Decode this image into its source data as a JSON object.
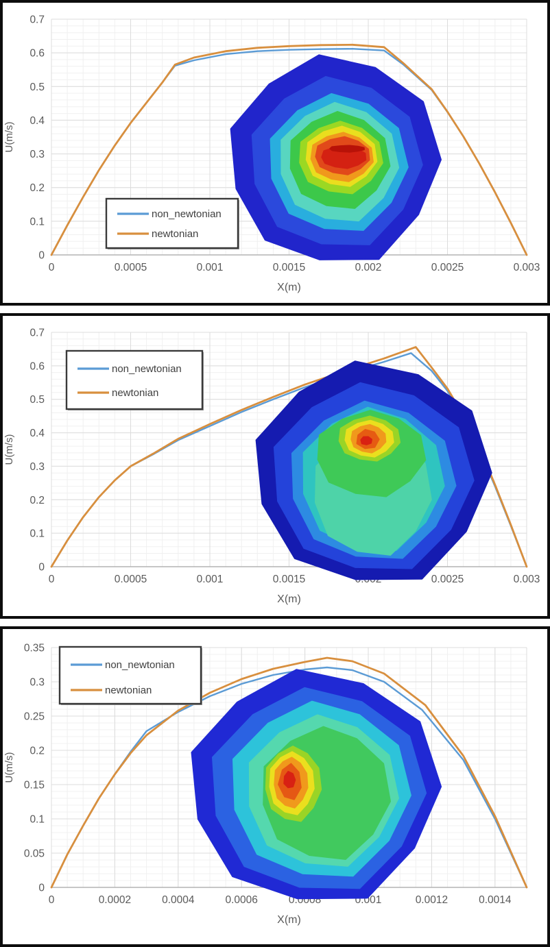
{
  "page": {
    "background": "#ffffff",
    "panel_border": "#0d0d0d"
  },
  "palette": {
    "grid_minor": "#f0f0f0",
    "grid_major": "#dcdcdc",
    "axis_line": "#b3b3b3",
    "tick_text": "#595959",
    "legend_text": "#404040",
    "legend_border": "#3a3a3a",
    "series_blue": "#5b9bd5",
    "series_orange": "#d88f3e"
  },
  "chart_data": [
    {
      "type": "line",
      "title": "",
      "xlabel": "X(m)",
      "ylabel": "U(m/s)",
      "xlim": [
        0,
        0.003
      ],
      "ylim": [
        0,
        0.7
      ],
      "grid": "on",
      "legend_position": "lower-left",
      "y_ticks": [
        {
          "v": 0,
          "label": "0"
        },
        {
          "v": 0.1,
          "label": "0.1"
        },
        {
          "v": 0.2,
          "label": "0.2"
        },
        {
          "v": 0.3,
          "label": "0.3"
        },
        {
          "v": 0.4,
          "label": "0.4"
        },
        {
          "v": 0.5,
          "label": "0.5"
        },
        {
          "v": 0.6,
          "label": "0.6"
        },
        {
          "v": 0.7,
          "label": "0.7"
        }
      ],
      "x_ticks": [
        {
          "v": 0,
          "label": "0"
        },
        {
          "v": 0.0005,
          "label": "0.0005"
        },
        {
          "v": 0.001,
          "label": "0.001"
        },
        {
          "v": 0.0015,
          "label": "0.0015"
        },
        {
          "v": 0.002,
          "label": "0.002"
        },
        {
          "v": 0.0025,
          "label": "0.0025"
        },
        {
          "v": 0.003,
          "label": "0.003"
        }
      ],
      "minor_x_step": 0.0001,
      "minor_y_step": 0.02,
      "series": [
        {
          "name": "non_newtonian",
          "color": "#5b9bd5",
          "width": 2.4,
          "points": [
            [
              0,
              0
            ],
            [
              0.0001,
              0.088
            ],
            [
              0.0002,
              0.172
            ],
            [
              0.0003,
              0.252
            ],
            [
              0.0004,
              0.325
            ],
            [
              0.0005,
              0.392
            ],
            [
              0.0006,
              0.452
            ],
            [
              0.0007,
              0.512
            ],
            [
              0.00078,
              0.562
            ],
            [
              0.0009,
              0.578
            ],
            [
              0.0011,
              0.596
            ],
            [
              0.0013,
              0.605
            ],
            [
              0.0015,
              0.609
            ],
            [
              0.0017,
              0.611
            ],
            [
              0.0019,
              0.612
            ],
            [
              0.0021,
              0.607
            ],
            [
              0.00222,
              0.566
            ],
            [
              0.0024,
              0.49
            ],
            [
              0.0025,
              0.424
            ],
            [
              0.0026,
              0.352
            ],
            [
              0.0027,
              0.272
            ],
            [
              0.0028,
              0.186
            ],
            [
              0.0029,
              0.095
            ],
            [
              0.003,
              0
            ]
          ]
        },
        {
          "name": "newtonian",
          "color": "#d88f3e",
          "width": 2.8,
          "points": [
            [
              0,
              0
            ],
            [
              0.0001,
              0.088
            ],
            [
              0.0002,
              0.172
            ],
            [
              0.0003,
              0.252
            ],
            [
              0.0004,
              0.325
            ],
            [
              0.0005,
              0.392
            ],
            [
              0.0006,
              0.452
            ],
            [
              0.0007,
              0.512
            ],
            [
              0.00078,
              0.565
            ],
            [
              0.0009,
              0.586
            ],
            [
              0.0011,
              0.605
            ],
            [
              0.0013,
              0.615
            ],
            [
              0.0015,
              0.62
            ],
            [
              0.0017,
              0.623
            ],
            [
              0.0019,
              0.624
            ],
            [
              0.0021,
              0.617
            ],
            [
              0.00222,
              0.57
            ],
            [
              0.0024,
              0.492
            ],
            [
              0.0025,
              0.425
            ],
            [
              0.0026,
              0.352
            ],
            [
              0.0027,
              0.272
            ],
            [
              0.0028,
              0.186
            ],
            [
              0.0029,
              0.095
            ],
            [
              0.003,
              0
            ]
          ]
        }
      ],
      "inset_contour": {
        "description": "velocity contour of pipe cross-section, red core near center",
        "rings": [
          [
            "#2125cb",
            150,
            152,
            0,
            0
          ],
          [
            "#2b49dc",
            122,
            124,
            2,
            4
          ],
          [
            "#29aede",
            99,
            100,
            5,
            5
          ],
          [
            "#58d6c0",
            85,
            86,
            6,
            4
          ],
          [
            "#3cc84a",
            72,
            70,
            7,
            1
          ],
          [
            "#9bd823",
            60,
            52,
            9,
            -3
          ],
          [
            "#eade1e",
            51,
            43,
            10,
            -5
          ],
          [
            "#f0991c",
            45,
            35,
            11,
            -4
          ],
          [
            "#e1491a",
            39,
            27,
            12,
            -6
          ],
          [
            "#d42112",
            32,
            16,
            14,
            -4
          ],
          [
            "#b81208",
            25,
            4.5,
            19,
            -16
          ]
        ]
      }
    },
    {
      "type": "line",
      "title": "",
      "xlabel": "X(m)",
      "ylabel": "U(m/s)",
      "xlim": [
        0,
        0.003
      ],
      "ylim": [
        0,
        0.7
      ],
      "grid": "on",
      "legend_position": "upper-left",
      "y_ticks": [
        {
          "v": 0,
          "label": "0"
        },
        {
          "v": 0.1,
          "label": "0.1"
        },
        {
          "v": 0.2,
          "label": "0.2"
        },
        {
          "v": 0.3,
          "label": "0.3"
        },
        {
          "v": 0.4,
          "label": "0.4"
        },
        {
          "v": 0.5,
          "label": "0.5"
        },
        {
          "v": 0.6,
          "label": "0.6"
        },
        {
          "v": 0.7,
          "label": "0.7"
        }
      ],
      "x_ticks": [
        {
          "v": 0,
          "label": "0"
        },
        {
          "v": 0.0005,
          "label": "0.0005"
        },
        {
          "v": 0.001,
          "label": "0.001"
        },
        {
          "v": 0.0015,
          "label": "0.0015"
        },
        {
          "v": 0.002,
          "label": "0.002"
        },
        {
          "v": 0.0025,
          "label": "0.0025"
        },
        {
          "v": 0.003,
          "label": "0.003"
        }
      ],
      "minor_x_step": 0.0001,
      "minor_y_step": 0.02,
      "series": [
        {
          "name": "non_newtonian",
          "color": "#5b9bd5",
          "width": 2.4,
          "points": [
            [
              0,
              0
            ],
            [
              0.0001,
              0.078
            ],
            [
              0.0002,
              0.148
            ],
            [
              0.0003,
              0.208
            ],
            [
              0.0004,
              0.258
            ],
            [
              0.0005,
              0.3
            ],
            [
              0.00064,
              0.335
            ],
            [
              0.0008,
              0.378
            ],
            [
              0.001,
              0.42
            ],
            [
              0.0012,
              0.462
            ],
            [
              0.0014,
              0.5
            ],
            [
              0.0016,
              0.536
            ],
            [
              0.0018,
              0.568
            ],
            [
              0.002,
              0.598
            ],
            [
              0.0021,
              0.612
            ],
            [
              0.00227,
              0.638
            ],
            [
              0.0024,
              0.585
            ],
            [
              0.0025,
              0.525
            ],
            [
              0.0026,
              0.445
            ],
            [
              0.0027,
              0.352
            ],
            [
              0.0028,
              0.24
            ],
            [
              0.0029,
              0.122
            ],
            [
              0.003,
              0
            ]
          ]
        },
        {
          "name": "newtonian",
          "color": "#d88f3e",
          "width": 2.8,
          "points": [
            [
              0,
              0
            ],
            [
              0.0001,
              0.078
            ],
            [
              0.0002,
              0.148
            ],
            [
              0.0003,
              0.208
            ],
            [
              0.0004,
              0.258
            ],
            [
              0.0005,
              0.3
            ],
            [
              0.00064,
              0.337
            ],
            [
              0.0008,
              0.382
            ],
            [
              0.001,
              0.426
            ],
            [
              0.0012,
              0.468
            ],
            [
              0.0014,
              0.507
            ],
            [
              0.0016,
              0.544
            ],
            [
              0.0018,
              0.576
            ],
            [
              0.002,
              0.607
            ],
            [
              0.0021,
              0.622
            ],
            [
              0.0023,
              0.656
            ],
            [
              0.0024,
              0.595
            ],
            [
              0.0025,
              0.532
            ],
            [
              0.0026,
              0.452
            ],
            [
              0.0027,
              0.358
            ],
            [
              0.0028,
              0.245
            ],
            [
              0.0029,
              0.125
            ],
            [
              0.003,
              0
            ]
          ]
        }
      ],
      "inset_contour": {
        "description": "velocity contour of pipe cross-section, red core near top",
        "rings": [
          [
            "#151bb0",
            168,
            162,
            0,
            0
          ],
          [
            "#2443da",
            143,
            137,
            0,
            7
          ],
          [
            "#2d8be2",
            118,
            115,
            0,
            12
          ],
          [
            "#2fc4c0",
            102,
            104,
            0,
            10
          ],
          [
            "#4ed3a8",
            84,
            92,
            0,
            28
          ],
          [
            "#3fc957",
            78,
            62,
            -2,
            -28
          ],
          [
            "#9ad426",
            44,
            32,
            -4,
            -50
          ],
          [
            "#ebdf1e",
            35,
            26,
            -4,
            -50
          ],
          [
            "#f0991c",
            25,
            20,
            -5,
            -50
          ],
          [
            "#e65b12",
            16,
            14,
            -6,
            -49
          ],
          [
            "#d92112",
            8,
            6,
            -8,
            -47
          ]
        ]
      }
    },
    {
      "type": "line",
      "title": "",
      "xlabel": "X(m)",
      "ylabel": "U(m/s)",
      "xlim": [
        0,
        0.0015
      ],
      "ylim": [
        0,
        0.35
      ],
      "grid": "on",
      "legend_position": "upper-left",
      "y_ticks": [
        {
          "v": 0,
          "label": "0"
        },
        {
          "v": 0.05,
          "label": "0.05"
        },
        {
          "v": 0.1,
          "label": "0.1"
        },
        {
          "v": 0.15,
          "label": "0.15"
        },
        {
          "v": 0.2,
          "label": "0.2"
        },
        {
          "v": 0.25,
          "label": "0.25"
        },
        {
          "v": 0.3,
          "label": "0.3"
        },
        {
          "v": 0.35,
          "label": "0.35"
        }
      ],
      "x_ticks": [
        {
          "v": 0,
          "label": "0"
        },
        {
          "v": 0.0002,
          "label": "0.0002"
        },
        {
          "v": 0.0004,
          "label": "0.0004"
        },
        {
          "v": 0.0006,
          "label": "0.0006"
        },
        {
          "v": 0.0008,
          "label": "0.0008"
        },
        {
          "v": 0.001,
          "label": "0.001"
        },
        {
          "v": 0.0012,
          "label": "0.0012"
        },
        {
          "v": 0.0014,
          "label": "0.0014"
        }
      ],
      "minor_x_step": 5e-05,
      "minor_y_step": 0.01,
      "series": [
        {
          "name": "non_newtonian",
          "color": "#5b9bd5",
          "width": 2.4,
          "points": [
            [
              0,
              0
            ],
            [
              5e-05,
              0.048
            ],
            [
              0.0001,
              0.09
            ],
            [
              0.00015,
              0.13
            ],
            [
              0.0002,
              0.165
            ],
            [
              0.00025,
              0.198
            ],
            [
              0.0003,
              0.228
            ],
            [
              0.0004,
              0.256
            ],
            [
              0.0005,
              0.279
            ],
            [
              0.0006,
              0.297
            ],
            [
              0.0007,
              0.31
            ],
            [
              0.0008,
              0.318
            ],
            [
              0.00087,
              0.321
            ],
            [
              0.00095,
              0.317
            ],
            [
              0.00105,
              0.3
            ],
            [
              0.00117,
              0.259
            ],
            [
              0.0013,
              0.186
            ],
            [
              0.0014,
              0.1
            ],
            [
              0.0015,
              0
            ]
          ]
        },
        {
          "name": "newtonian",
          "color": "#d88f3e",
          "width": 2.8,
          "points": [
            [
              0,
              0
            ],
            [
              5e-05,
              0.048
            ],
            [
              0.0001,
              0.09
            ],
            [
              0.00015,
              0.13
            ],
            [
              0.0002,
              0.165
            ],
            [
              0.00025,
              0.196
            ],
            [
              0.0003,
              0.222
            ],
            [
              0.0004,
              0.258
            ],
            [
              0.0005,
              0.284
            ],
            [
              0.0006,
              0.304
            ],
            [
              0.0007,
              0.319
            ],
            [
              0.0008,
              0.329
            ],
            [
              0.00087,
              0.335
            ],
            [
              0.00095,
              0.33
            ],
            [
              0.00105,
              0.312
            ],
            [
              0.00118,
              0.266
            ],
            [
              0.0013,
              0.192
            ],
            [
              0.0014,
              0.104
            ],
            [
              0.0015,
              0
            ]
          ]
        }
      ],
      "inset_contour": {
        "description": "velocity contour of pipe cross-section, red core left of center",
        "rings": [
          [
            "#2029d4",
            178,
            170,
            0,
            0
          ],
          [
            "#2b62e2",
            153,
            148,
            4,
            5
          ],
          [
            "#2dc3da",
            128,
            128,
            8,
            5
          ],
          [
            "#55d8ae",
            108,
            110,
            11,
            7
          ],
          [
            "#41c95e",
            92,
            96,
            16,
            10
          ],
          [
            "#9ad426",
            40,
            54,
            -31,
            -4
          ],
          [
            "#ebdf1e",
            32,
            45,
            -33,
            -5
          ],
          [
            "#f0991c",
            24,
            36,
            -34,
            -6
          ],
          [
            "#e55814",
            16,
            26,
            -35,
            -7
          ],
          [
            "#d82113",
            8,
            12,
            -36,
            -10
          ]
        ]
      }
    }
  ]
}
